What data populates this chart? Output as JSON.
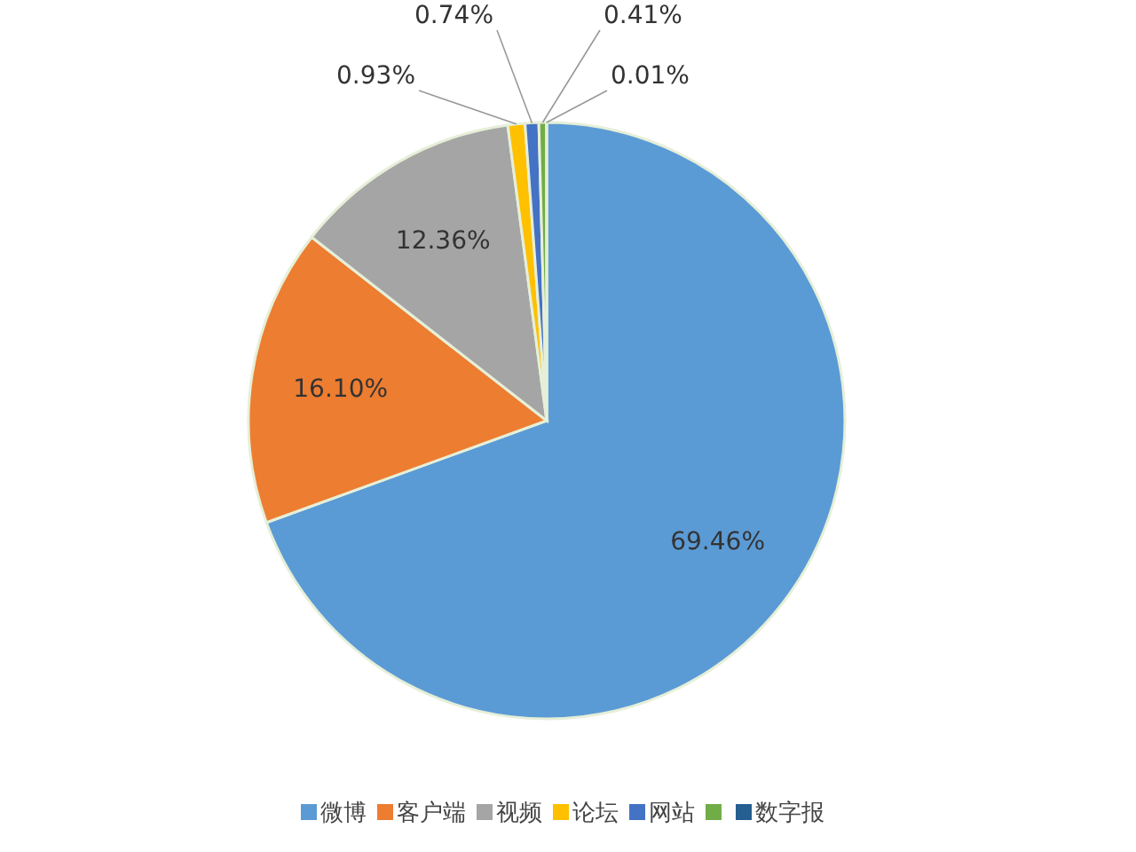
{
  "chart_data": {
    "type": "pie",
    "categories": [
      "微博",
      "客户端",
      "视频",
      "论坛",
      "网站",
      null,
      "数字报"
    ],
    "values": [
      69.46,
      16.1,
      12.36,
      0.93,
      0.74,
      0.41,
      0.01
    ],
    "value_labels": [
      "69.46%",
      "16.10%",
      "12.36%",
      "0.93%",
      "0.74%",
      "0.41%",
      "0.01%"
    ],
    "colors": [
      "#5b9bd5",
      "#ed7d31",
      "#a5a5a5",
      "#ffc000",
      "#4472c4",
      "#70ad47",
      "#255e91"
    ],
    "legend": "bottom"
  }
}
